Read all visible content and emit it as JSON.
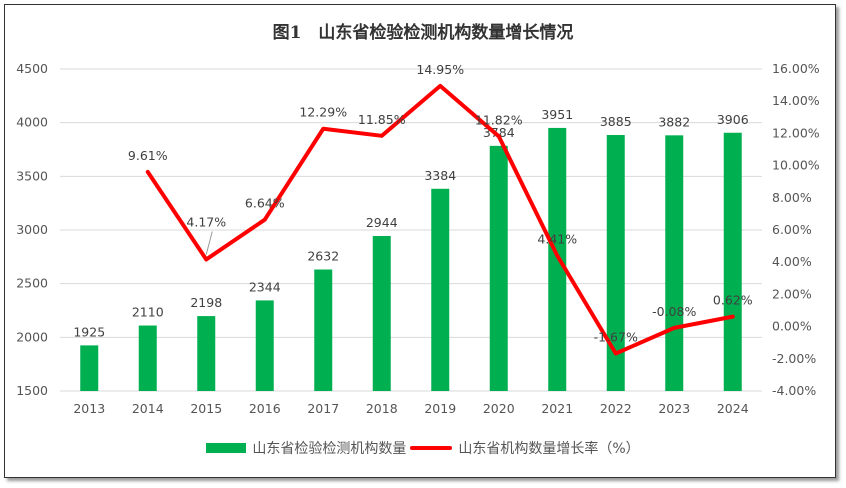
{
  "chart_data": {
    "type": "bar+line",
    "title": "图1　山东省检验检测机构数量增长情况",
    "categories": [
      "2013",
      "2014",
      "2015",
      "2016",
      "2017",
      "2018",
      "2019",
      "2020",
      "2021",
      "2022",
      "2023",
      "2024"
    ],
    "series": [
      {
        "name": "山东省检验检测机构数量",
        "type": "bar",
        "axis": "left",
        "color": "#00b050",
        "values": [
          1925,
          2110,
          2198,
          2344,
          2632,
          2944,
          3384,
          3784,
          3951,
          3885,
          3882,
          3906
        ],
        "labels": [
          "1925",
          "2110",
          "2198",
          "2344",
          "2632",
          "2944",
          "3384",
          "3784",
          "3951",
          "3885",
          "3882",
          "3906"
        ]
      },
      {
        "name": "山东省机构数量增长率（%）",
        "type": "line",
        "axis": "right",
        "color": "#ff0000",
        "values": [
          null,
          9.61,
          4.17,
          6.64,
          12.29,
          11.85,
          14.95,
          11.82,
          4.41,
          -1.67,
          -0.08,
          0.62
        ],
        "labels": [
          "",
          "9.61%",
          "4.17%",
          "6.64%",
          "12.29%",
          "11.85%",
          "14.95%",
          "11.82%",
          "4.41%",
          "-1.67%",
          "-0.08%",
          "0.62%"
        ]
      }
    ],
    "y_left": {
      "ylim": [
        1500,
        4500
      ],
      "ticks": [
        "1500",
        "2000",
        "2500",
        "3000",
        "3500",
        "4000",
        "4500"
      ]
    },
    "y_right": {
      "ylim": [
        -4,
        16
      ],
      "ticks": [
        "-4.00%",
        "-2.00%",
        "0.00%",
        "2.00%",
        "4.00%",
        "6.00%",
        "8.00%",
        "10.00%",
        "12.00%",
        "14.00%",
        "16.00%"
      ]
    },
    "grid": true,
    "legend": "bottom"
  }
}
